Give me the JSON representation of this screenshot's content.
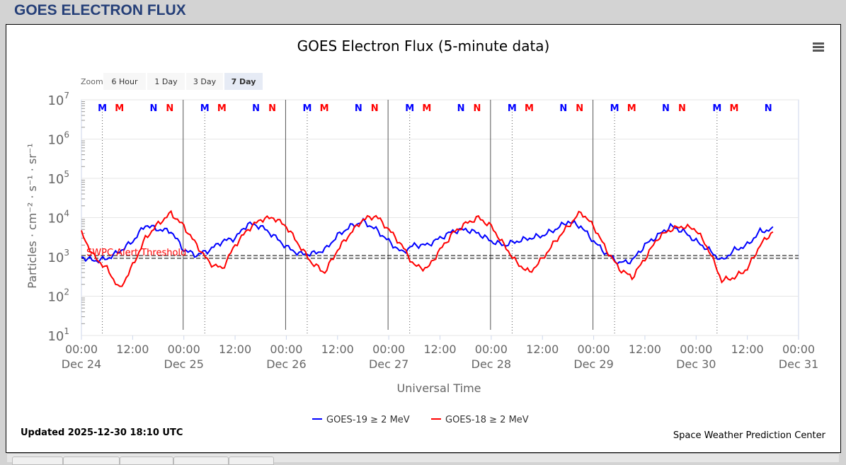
{
  "page_title": "GOES ELECTRON FLUX",
  "menu_icon": "hamburger-menu-icon",
  "zoom": {
    "label": "Zoom",
    "buttons": [
      "6 Hour",
      "1 Day",
      "3 Day",
      "7 Day"
    ],
    "selected": "7 Day"
  },
  "updated": "Updated 2025-12-30 18:10 UTC",
  "credit": "Space Weather Prediction Center",
  "chart_data": {
    "type": "line",
    "title": "GOES Electron Flux (5-minute data)",
    "xlabel": "Universal Time",
    "ylabel": "Particles · cm⁻² · s⁻¹ · sr⁻¹",
    "yscale": "log",
    "ylim": [
      10,
      10000000
    ],
    "xlim": [
      "2025-12-24 00:00",
      "2025-12-31 00:00"
    ],
    "ytick_exponents": [
      1,
      2,
      3,
      4,
      5,
      6,
      7
    ],
    "xticks": [
      [
        "00:00",
        "Dec 24"
      ],
      [
        "12:00",
        ""
      ],
      [
        "00:00",
        "Dec 25"
      ],
      [
        "12:00",
        ""
      ],
      [
        "00:00",
        "Dec 26"
      ],
      [
        "12:00",
        ""
      ],
      [
        "00:00",
        "Dec 27"
      ],
      [
        "12:00",
        ""
      ],
      [
        "00:00",
        "Dec 28"
      ],
      [
        "12:00",
        ""
      ],
      [
        "00:00",
        "Dec 29"
      ],
      [
        "12:00",
        ""
      ],
      [
        "00:00",
        "Dec 30"
      ],
      [
        "12:00",
        ""
      ],
      [
        "00:00",
        "Dec 31"
      ]
    ],
    "grid": true,
    "legend_position": "bottom",
    "threshold": {
      "label": "SWPC Alert Threshold",
      "value": 1000,
      "color": "#ff0000"
    },
    "x": [
      "2025-12-24 00:00",
      "2025-12-24 03:00",
      "2025-12-24 06:00",
      "2025-12-24 09:00",
      "2025-12-24 12:00",
      "2025-12-24 15:00",
      "2025-12-24 18:00",
      "2025-12-24 21:00",
      "2025-12-25 00:00",
      "2025-12-25 03:00",
      "2025-12-25 06:00",
      "2025-12-25 09:00",
      "2025-12-25 12:00",
      "2025-12-25 15:00",
      "2025-12-25 18:00",
      "2025-12-25 21:00",
      "2025-12-26 00:00",
      "2025-12-26 03:00",
      "2025-12-26 06:00",
      "2025-12-26 09:00",
      "2025-12-26 12:00",
      "2025-12-26 15:00",
      "2025-12-26 18:00",
      "2025-12-26 21:00",
      "2025-12-27 00:00",
      "2025-12-27 03:00",
      "2025-12-27 06:00",
      "2025-12-27 09:00",
      "2025-12-27 12:00",
      "2025-12-27 15:00",
      "2025-12-27 18:00",
      "2025-12-27 21:00",
      "2025-12-28 00:00",
      "2025-12-28 03:00",
      "2025-12-28 06:00",
      "2025-12-28 09:00",
      "2025-12-28 12:00",
      "2025-12-28 15:00",
      "2025-12-28 18:00",
      "2025-12-28 21:00",
      "2025-12-29 00:00",
      "2025-12-29 03:00",
      "2025-12-29 06:00",
      "2025-12-29 09:00",
      "2025-12-29 12:00",
      "2025-12-29 15:00",
      "2025-12-29 18:00",
      "2025-12-29 21:00",
      "2025-12-30 00:00",
      "2025-12-30 03:00",
      "2025-12-30 06:00",
      "2025-12-30 09:00",
      "2025-12-30 12:00",
      "2025-12-30 15:00",
      "2025-12-30 18:00"
    ],
    "series": [
      {
        "name": "GOES-19 ≥ 2 MeV",
        "color": "#0000ff",
        "values": [
          1000,
          800,
          900,
          1400,
          2500,
          6500,
          5000,
          4500,
          1500,
          1100,
          1500,
          2500,
          3000,
          7000,
          6000,
          3500,
          1800,
          1200,
          1200,
          1500,
          3500,
          6000,
          8000,
          5000,
          2500,
          1300,
          2000,
          2000,
          3000,
          4500,
          5000,
          4000,
          2500,
          2000,
          2500,
          3000,
          3500,
          5000,
          8000,
          6000,
          2500,
          1200,
          700,
          800,
          2000,
          3500,
          6000,
          4500,
          2500,
          1500,
          800,
          1500,
          2000,
          4500,
          5000
        ]
      },
      {
        "name": "GOES-18 ≥ 2 MeV",
        "color": "#ff0000",
        "values": [
          4000,
          1000,
          500,
          150,
          600,
          3000,
          7000,
          13000,
          6000,
          2000,
          700,
          500,
          2000,
          5000,
          9000,
          10000,
          6000,
          2000,
          700,
          400,
          1500,
          4000,
          9000,
          11000,
          5000,
          2000,
          600,
          500,
          1500,
          4000,
          7000,
          10000,
          6000,
          2000,
          700,
          400,
          900,
          2500,
          6000,
          14000,
          6000,
          1500,
          500,
          300,
          900,
          3000,
          5000,
          6000,
          5000,
          1500,
          250,
          300,
          500,
          2000,
          4500
        ]
      }
    ],
    "markers": [
      {
        "label": "M",
        "color": "#0000ff",
        "times": [
          "2025-12-24 04:54",
          "2025-12-25 04:54",
          "2025-12-26 04:54",
          "2025-12-27 04:54",
          "2025-12-28 04:54",
          "2025-12-29 04:54",
          "2025-12-30 04:54"
        ]
      },
      {
        "label": "M",
        "color": "#ff0000",
        "times": [
          "2025-12-24 08:54",
          "2025-12-25 08:54",
          "2025-12-26 08:54",
          "2025-12-27 08:54",
          "2025-12-28 08:54",
          "2025-12-29 08:54",
          "2025-12-30 08:54"
        ]
      },
      {
        "label": "N",
        "color": "#0000ff",
        "times": [
          "2025-12-24 16:54",
          "2025-12-25 16:54",
          "2025-12-26 16:54",
          "2025-12-27 16:54",
          "2025-12-28 16:54",
          "2025-12-29 16:54",
          "2025-12-30 16:54"
        ]
      },
      {
        "label": "N",
        "color": "#ff0000",
        "times": [
          "2025-12-24 20:42",
          "2025-12-25 20:42",
          "2025-12-26 20:42",
          "2025-12-27 20:42",
          "2025-12-28 20:42",
          "2025-12-29 20:42"
        ]
      }
    ]
  }
}
